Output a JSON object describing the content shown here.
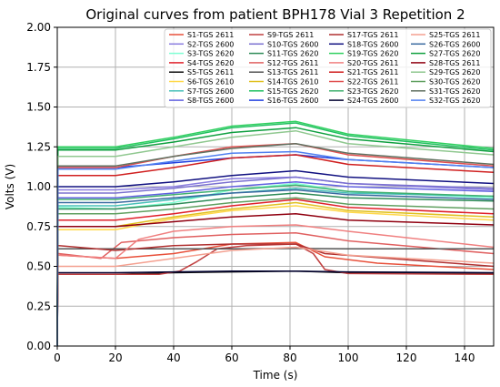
{
  "chart_data": {
    "type": "line",
    "title": "Original curves from patient BPH178 Vial 3 Repetition 2",
    "xlabel": "Time (s)",
    "ylabel": "Volts (V)",
    "xlim": [
      0,
      150
    ],
    "ylim": [
      0,
      2.0
    ],
    "xticks": [
      0,
      20,
      40,
      60,
      80,
      100,
      120,
      140
    ],
    "yticks": [
      0.0,
      0.25,
      0.5,
      0.75,
      1.0,
      1.25,
      1.5,
      1.75,
      2.0
    ],
    "xtick_labels": [
      "0",
      "20",
      "40",
      "60",
      "80",
      "100",
      "120",
      "140"
    ],
    "ytick_labels": [
      "0.00",
      "0.25",
      "0.50",
      "0.75",
      "1.00",
      "1.25",
      "1.50",
      "1.75",
      "2.00"
    ],
    "grid": true,
    "legend_position": "top-right",
    "series": [
      {
        "name": "S1-TGS 2611",
        "color": "#e8503a",
        "pts": [
          [
            0.5,
            0.57
          ],
          [
            20,
            0.55
          ],
          [
            40,
            0.58
          ],
          [
            60,
            0.64
          ],
          [
            82,
            0.65
          ],
          [
            92,
            0.56
          ],
          [
            110,
            0.52
          ],
          [
            150,
            0.48
          ]
        ]
      },
      {
        "name": "S2-TGS 2600",
        "color": "#8a7de0",
        "pts": [
          [
            0.5,
            0.98
          ],
          [
            20,
            0.98
          ],
          [
            40,
            1.0
          ],
          [
            60,
            1.05
          ],
          [
            82,
            1.06
          ],
          [
            100,
            1.02
          ],
          [
            150,
            0.98
          ]
        ]
      },
      {
        "name": "S3-TGS 2620",
        "color": "#7fffd4",
        "pts": [
          [
            0.5,
            0.87
          ],
          [
            20,
            0.86
          ],
          [
            40,
            0.9
          ],
          [
            60,
            0.98
          ],
          [
            82,
            1.02
          ],
          [
            100,
            0.97
          ],
          [
            150,
            0.93
          ]
        ]
      },
      {
        "name": "S4-TGS 2620",
        "color": "#e0202a",
        "pts": [
          [
            0.5,
            0.79
          ],
          [
            20,
            0.79
          ],
          [
            40,
            0.83
          ],
          [
            60,
            0.88
          ],
          [
            82,
            0.92
          ],
          [
            100,
            0.87
          ],
          [
            150,
            0.83
          ]
        ]
      },
      {
        "name": "S5-TGS 2611",
        "color": "#111111",
        "pts": [
          [
            0.5,
            0.45
          ],
          [
            20,
            0.45
          ],
          [
            40,
            0.46
          ],
          [
            60,
            0.465
          ],
          [
            82,
            0.47
          ],
          [
            100,
            0.46
          ],
          [
            150,
            0.455
          ]
        ]
      },
      {
        "name": "S6-TGS 2610",
        "color": "#ffd84a",
        "pts": [
          [
            0.5,
            0.73
          ],
          [
            20,
            0.73
          ],
          [
            40,
            0.8
          ],
          [
            60,
            0.85
          ],
          [
            82,
            0.88
          ],
          [
            100,
            0.84
          ],
          [
            150,
            0.79
          ]
        ]
      },
      {
        "name": "S7-TGS 2600",
        "color": "#48c0b8",
        "pts": [
          [
            0.5,
            0.88
          ],
          [
            20,
            0.88
          ],
          [
            40,
            0.92
          ],
          [
            60,
            0.96
          ],
          [
            82,
            0.99
          ],
          [
            100,
            0.96
          ],
          [
            150,
            0.94
          ]
        ]
      },
      {
        "name": "S8-TGS 2600",
        "color": "#6060e0",
        "pts": [
          [
            0.5,
            0.93
          ],
          [
            20,
            0.93
          ],
          [
            40,
            0.96
          ],
          [
            60,
            1.0
          ],
          [
            82,
            1.03
          ],
          [
            100,
            1.0
          ],
          [
            150,
            0.97
          ]
        ]
      },
      {
        "name": "S9-TGS 2611",
        "color": "#c04040",
        "pts": [
          [
            0.5,
            0.45
          ],
          [
            35,
            0.45
          ],
          [
            42,
            0.47
          ],
          [
            48,
            0.53
          ],
          [
            55,
            0.61
          ],
          [
            65,
            0.63
          ],
          [
            82,
            0.64
          ],
          [
            88,
            0.58
          ],
          [
            92,
            0.48
          ],
          [
            100,
            0.455
          ],
          [
            150,
            0.45
          ]
        ]
      },
      {
        "name": "S10-TGS 2600",
        "color": "#7a70d0",
        "pts": [
          [
            0.5,
            0.96
          ],
          [
            20,
            0.96
          ],
          [
            40,
            0.99
          ],
          [
            60,
            1.03
          ],
          [
            82,
            1.06
          ],
          [
            100,
            1.02
          ],
          [
            150,
            0.99
          ]
        ]
      },
      {
        "name": "S11-TGS 2620",
        "color": "#2e8b57",
        "pts": [
          [
            0.5,
            0.86
          ],
          [
            20,
            0.86
          ],
          [
            40,
            0.89
          ],
          [
            60,
            0.93
          ],
          [
            82,
            0.96
          ],
          [
            100,
            0.93
          ],
          [
            150,
            0.91
          ]
        ]
      },
      {
        "name": "S12-TGS 2611",
        "color": "#e06060",
        "pts": [
          [
            0.5,
            0.58
          ],
          [
            15,
            0.55
          ],
          [
            22,
            0.65
          ],
          [
            40,
            0.68
          ],
          [
            60,
            0.7
          ],
          [
            82,
            0.71
          ],
          [
            100,
            0.66
          ],
          [
            150,
            0.58
          ]
        ]
      },
      {
        "name": "S13-TGS 2611",
        "color": "#555555",
        "pts": [
          [
            0.5,
            0.61
          ],
          [
            20,
            0.61
          ],
          [
            40,
            0.61
          ],
          [
            60,
            0.61
          ],
          [
            82,
            0.612
          ],
          [
            100,
            0.61
          ],
          [
            150,
            0.61
          ]
        ]
      },
      {
        "name": "S14-TGS 2610",
        "color": "#e0c020",
        "pts": [
          [
            0.5,
            0.75
          ],
          [
            20,
            0.75
          ],
          [
            40,
            0.81
          ],
          [
            60,
            0.86
          ],
          [
            82,
            0.9
          ],
          [
            100,
            0.85
          ],
          [
            150,
            0.81
          ]
        ]
      },
      {
        "name": "S15-TGS 2620",
        "color": "#20c060",
        "pts": [
          [
            0.5,
            1.24
          ],
          [
            20,
            1.24
          ],
          [
            40,
            1.3
          ],
          [
            60,
            1.37
          ],
          [
            82,
            1.4
          ],
          [
            100,
            1.32
          ],
          [
            150,
            1.23
          ]
        ]
      },
      {
        "name": "S16-TGS 2600",
        "color": "#2040e0",
        "pts": [
          [
            0.5,
            1.12
          ],
          [
            20,
            1.12
          ],
          [
            40,
            1.15
          ],
          [
            60,
            1.18
          ],
          [
            82,
            1.2
          ],
          [
            100,
            1.17
          ],
          [
            150,
            1.12
          ]
        ]
      },
      {
        "name": "S17-TGS 2611",
        "color": "#b03030",
        "pts": [
          [
            0.5,
            0.63
          ],
          [
            20,
            0.6
          ],
          [
            40,
            0.63
          ],
          [
            60,
            0.64
          ],
          [
            82,
            0.64
          ],
          [
            92,
            0.58
          ],
          [
            150,
            0.5
          ]
        ]
      },
      {
        "name": "S18-TGS 2600",
        "color": "#101080",
        "pts": [
          [
            0.5,
            1.0
          ],
          [
            20,
            1.0
          ],
          [
            40,
            1.03
          ],
          [
            60,
            1.07
          ],
          [
            82,
            1.1
          ],
          [
            100,
            1.06
          ],
          [
            150,
            1.02
          ]
        ]
      },
      {
        "name": "S19-TGS 2620",
        "color": "#30d060",
        "pts": [
          [
            0.5,
            1.25
          ],
          [
            20,
            1.25
          ],
          [
            40,
            1.31
          ],
          [
            60,
            1.38
          ],
          [
            82,
            1.41
          ],
          [
            100,
            1.33
          ],
          [
            150,
            1.24
          ]
        ]
      },
      {
        "name": "S20-TGS 2611",
        "color": "#f08080",
        "pts": [
          [
            0.5,
            0.57
          ],
          [
            20,
            0.55
          ],
          [
            28,
            0.67
          ],
          [
            40,
            0.72
          ],
          [
            60,
            0.75
          ],
          [
            82,
            0.76
          ],
          [
            100,
            0.72
          ],
          [
            150,
            0.62
          ]
        ]
      },
      {
        "name": "S21-TGS 2611",
        "color": "#d02020",
        "pts": [
          [
            0.5,
            1.07
          ],
          [
            20,
            1.07
          ],
          [
            40,
            1.12
          ],
          [
            60,
            1.18
          ],
          [
            82,
            1.2
          ],
          [
            100,
            1.14
          ],
          [
            150,
            1.09
          ]
        ]
      },
      {
        "name": "S22-TGS 2611",
        "color": "#e05050",
        "pts": [
          [
            0.5,
            1.12
          ],
          [
            20,
            1.12
          ],
          [
            40,
            1.19
          ],
          [
            60,
            1.25
          ],
          [
            82,
            1.27
          ],
          [
            100,
            1.2
          ],
          [
            150,
            1.13
          ]
        ]
      },
      {
        "name": "S23-TGS 2620",
        "color": "#40b070",
        "pts": [
          [
            0.5,
            0.92
          ],
          [
            20,
            0.92
          ],
          [
            40,
            0.95
          ],
          [
            60,
            0.98
          ],
          [
            82,
            1.01
          ],
          [
            100,
            0.97
          ],
          [
            150,
            0.94
          ]
        ]
      },
      {
        "name": "S24-TGS 2600",
        "color": "#000030",
        "pts": [
          [
            0.5,
            0.46
          ],
          [
            20,
            0.46
          ],
          [
            40,
            0.465
          ],
          [
            60,
            0.47
          ],
          [
            82,
            0.47
          ],
          [
            100,
            0.465
          ],
          [
            150,
            0.46
          ]
        ]
      },
      {
        "name": "S25-TGS 2611",
        "color": "#f4a090",
        "pts": [
          [
            0.5,
            0.5
          ],
          [
            20,
            0.5
          ],
          [
            40,
            0.55
          ],
          [
            60,
            0.6
          ],
          [
            82,
            0.62
          ],
          [
            100,
            0.57
          ],
          [
            150,
            0.52
          ]
        ]
      },
      {
        "name": "S26-TGS 2600",
        "color": "#3a6aa0",
        "pts": [
          [
            0.5,
            0.9
          ],
          [
            20,
            0.9
          ],
          [
            40,
            0.93
          ],
          [
            60,
            0.96
          ],
          [
            82,
            0.98
          ],
          [
            100,
            0.95
          ],
          [
            150,
            0.92
          ]
        ]
      },
      {
        "name": "S27-TGS 2620",
        "color": "#10a040",
        "pts": [
          [
            0.5,
            1.23
          ],
          [
            20,
            1.23
          ],
          [
            40,
            1.28
          ],
          [
            60,
            1.34
          ],
          [
            82,
            1.37
          ],
          [
            100,
            1.3
          ],
          [
            150,
            1.22
          ]
        ]
      },
      {
        "name": "S28-TGS 2611",
        "color": "#900010",
        "pts": [
          [
            0.5,
            0.75
          ],
          [
            20,
            0.75
          ],
          [
            40,
            0.78
          ],
          [
            60,
            0.81
          ],
          [
            82,
            0.83
          ],
          [
            100,
            0.79
          ],
          [
            150,
            0.76
          ]
        ]
      },
      {
        "name": "S29-TGS 2620",
        "color": "#90c890",
        "pts": [
          [
            0.5,
            1.19
          ],
          [
            20,
            1.19
          ],
          [
            40,
            1.25
          ],
          [
            60,
            1.31
          ],
          [
            82,
            1.35
          ],
          [
            100,
            1.27
          ],
          [
            150,
            1.2
          ]
        ]
      },
      {
        "name": "S30-TGS 2620",
        "color": "#60a060",
        "pts": [
          [
            0.5,
            0.83
          ],
          [
            20,
            0.83
          ],
          [
            40,
            0.86
          ],
          [
            60,
            0.9
          ],
          [
            82,
            0.93
          ],
          [
            100,
            0.89
          ],
          [
            150,
            0.86
          ]
        ]
      },
      {
        "name": "S31-TGS 2620",
        "color": "#607060",
        "pts": [
          [
            0.5,
            1.13
          ],
          [
            20,
            1.13
          ],
          [
            40,
            1.19
          ],
          [
            60,
            1.24
          ],
          [
            82,
            1.27
          ],
          [
            100,
            1.21
          ],
          [
            150,
            1.14
          ]
        ]
      },
      {
        "name": "S32-TGS 2620",
        "color": "#5080f0",
        "pts": [
          [
            0.5,
            1.11
          ],
          [
            20,
            1.11
          ],
          [
            40,
            1.16
          ],
          [
            60,
            1.21
          ],
          [
            82,
            1.22
          ],
          [
            100,
            1.17
          ],
          [
            150,
            1.12
          ]
        ]
      }
    ]
  }
}
